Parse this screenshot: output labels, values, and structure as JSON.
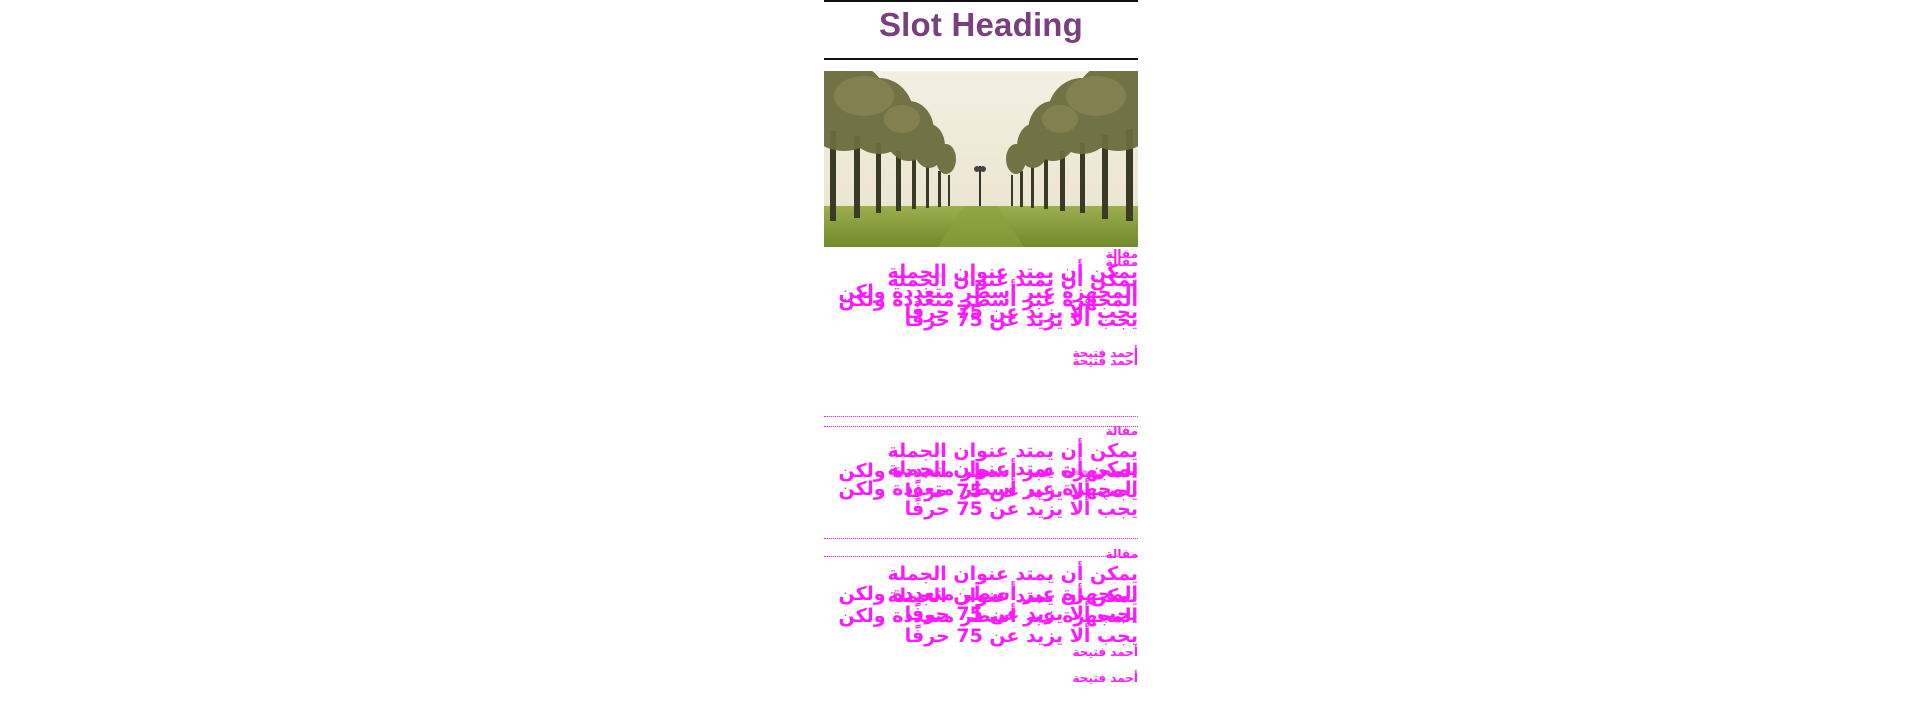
{
  "slot": {
    "heading": "Slot Heading",
    "heading_color": "#7a3f7f"
  },
  "image": {
    "icon": "palm-avenue-photo",
    "alt": "palm-avenue-photo"
  },
  "accent_color": "#ff19ff",
  "articles": [
    {
      "kicker": "مقالة",
      "title": "يمكن أن يمتد عنوان الجملة المجهزة عبر أسطر متعددة ولكن يجب ألا يزيد عن 75 حرفًا",
      "author": "أحمد فتيحة"
    },
    {
      "kicker": "مقالة",
      "title": "يمكن أن يمتد عنوان الجملة المجهزة عبر أسطر متعددة ولكن يجب ألا يزيد عن 75 حرفًا",
      "author": "أحمد فتيحة"
    },
    {
      "kicker": "مقالة",
      "title": "يمكن أن يمتد عنوان الجملة المجهزة عبر أسطر متعددة ولكن يجب ألا يزيد عن 75 حرفًا",
      "author": "أحمد فتيحة"
    }
  ]
}
